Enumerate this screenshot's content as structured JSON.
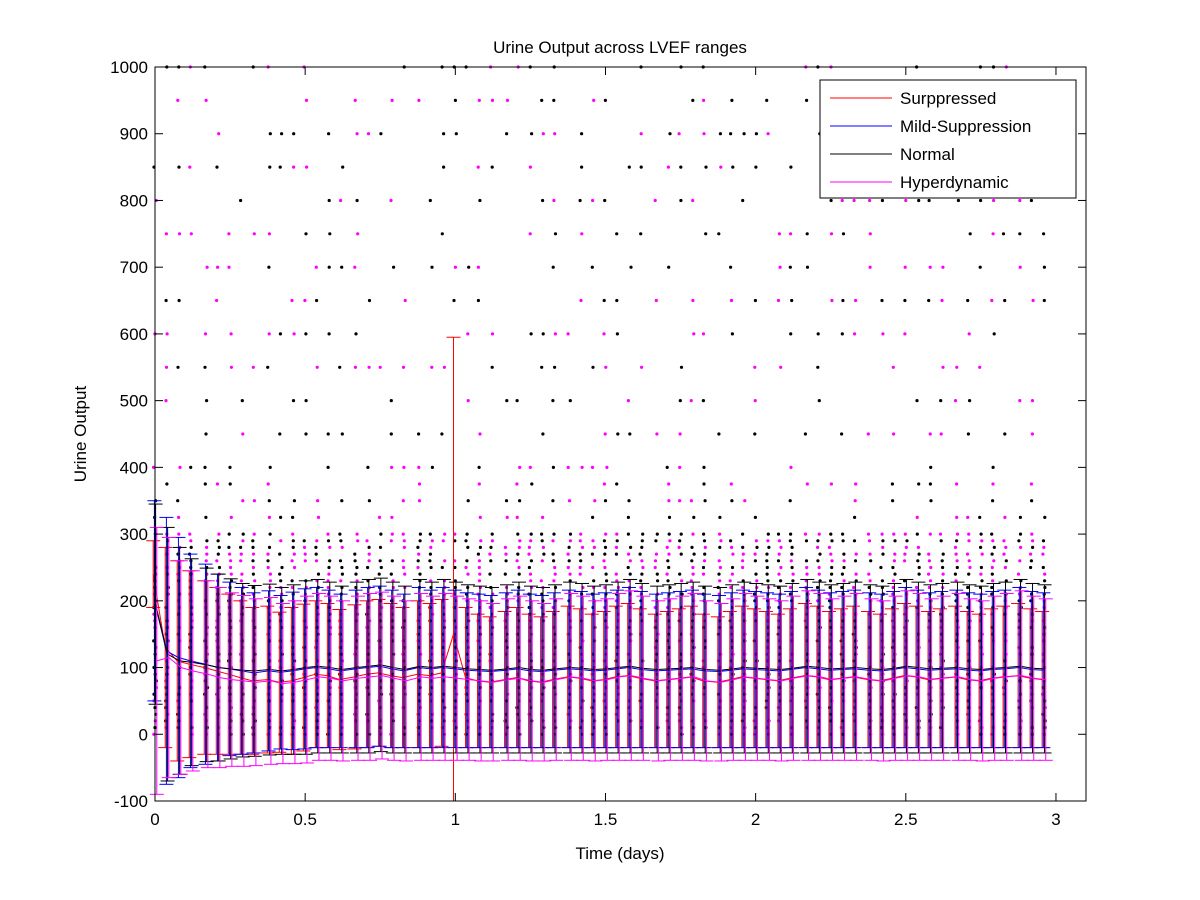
{
  "chart_data": {
    "type": "line",
    "title": "Urine Output across LVEF ranges",
    "xlabel": "Time (days)",
    "ylabel": "Urine Output",
    "xlim": [
      0,
      3.1
    ],
    "ylim": [
      -100,
      1000
    ],
    "x_ticks": [
      0,
      0.5,
      1,
      1.5,
      2,
      2.5,
      3
    ],
    "x_tick_labels": [
      "0",
      "0.5",
      "1",
      "1.5",
      "2",
      "2.5",
      "3"
    ],
    "y_ticks": [
      -100,
      0,
      100,
      200,
      300,
      400,
      500,
      600,
      700,
      800,
      900,
      1000
    ],
    "y_tick_labels": [
      "-100",
      "0",
      "100",
      "200",
      "300",
      "400",
      "500",
      "600",
      "700",
      "800",
      "900",
      "1000"
    ],
    "grid": false,
    "legend_position": "top-right",
    "x": [
      0,
      0.04,
      0.08,
      0.12,
      0.17,
      0.21,
      0.25,
      0.29,
      0.33,
      0.38,
      0.42,
      0.46,
      0.5,
      0.54,
      0.58,
      0.62,
      0.67,
      0.71,
      0.75,
      0.79,
      0.83,
      0.88,
      0.92,
      0.96,
      1.0,
      1.04,
      1.08,
      1.12,
      1.17,
      1.21,
      1.25,
      1.29,
      1.33,
      1.38,
      1.42,
      1.46,
      1.5,
      1.54,
      1.58,
      1.62,
      1.67,
      1.71,
      1.75,
      1.79,
      1.83,
      1.88,
      1.92,
      1.96,
      2.0,
      2.04,
      2.08,
      2.12,
      2.17,
      2.21,
      2.25,
      2.29,
      2.33,
      2.38,
      2.42,
      2.46,
      2.5,
      2.54,
      2.58,
      2.62,
      2.67,
      2.71,
      2.75,
      2.79,
      2.83,
      2.88,
      2.92,
      2.96
    ],
    "series": [
      {
        "name": "Surppressed",
        "color": "#ff0000",
        "values": [
          240,
          130,
          110,
          105,
          100,
          95,
          90,
          85,
          80,
          82,
          78,
          80,
          85,
          90,
          88,
          82,
          86,
          90,
          92,
          88,
          85,
          90,
          88,
          92,
          150,
          85,
          80,
          78,
          82,
          85,
          80,
          78,
          82,
          86,
          84,
          80,
          82,
          86,
          88,
          84,
          80,
          82,
          84,
          86,
          80,
          78,
          82,
          86,
          84,
          82,
          80,
          84,
          88,
          86,
          82,
          84,
          86,
          82,
          80,
          84,
          88,
          86,
          82,
          84,
          86,
          82,
          80,
          84,
          86,
          88,
          84,
          82
        ],
        "error": [
          50,
          150,
          150,
          140,
          130,
          125,
          120,
          115,
          110,
          110,
          105,
          110,
          110,
          110,
          108,
          105,
          108,
          110,
          110,
          108,
          105,
          110,
          108,
          110,
          445,
          105,
          100,
          98,
          102,
          105,
          100,
          98,
          102,
          106,
          104,
          100,
          102,
          106,
          108,
          104,
          100,
          102,
          104,
          106,
          100,
          98,
          102,
          106,
          104,
          102,
          100,
          104,
          108,
          106,
          102,
          104,
          106,
          102,
          100,
          104,
          108,
          106,
          102,
          104,
          106,
          102,
          100,
          104,
          106,
          108,
          104,
          102
        ]
      },
      {
        "name": "Mild-Suppression",
        "color": "#0000ff",
        "values": [
          200,
          125,
          115,
          110,
          105,
          100,
          98,
          95,
          92,
          95,
          93,
          95,
          98,
          100,
          98,
          95,
          98,
          100,
          102,
          98,
          95,
          100,
          98,
          100,
          98,
          96,
          95,
          94,
          96,
          98,
          95,
          94,
          96,
          98,
          97,
          95,
          96,
          98,
          100,
          97,
          95,
          96,
          97,
          98,
          95,
          94,
          96,
          98,
          97,
          96,
          95,
          97,
          100,
          98,
          96,
          97,
          98,
          96,
          95,
          97,
          100,
          98,
          96,
          97,
          98,
          96,
          95,
          97,
          98,
          100,
          97,
          96
        ],
        "error": [
          150,
          200,
          180,
          160,
          150,
          140,
          130,
          125,
          120,
          120,
          115,
          118,
          120,
          120,
          118,
          115,
          118,
          120,
          120,
          118,
          115,
          120,
          118,
          120,
          118,
          116,
          115,
          114,
          116,
          118,
          115,
          114,
          116,
          118,
          117,
          115,
          116,
          118,
          120,
          117,
          115,
          116,
          117,
          118,
          115,
          114,
          116,
          118,
          117,
          116,
          115,
          117,
          120,
          118,
          116,
          117,
          118,
          116,
          115,
          117,
          120,
          118,
          116,
          117,
          118,
          116,
          115,
          117,
          118,
          120,
          117,
          116
        ]
      },
      {
        "name": "Normal",
        "color": "#000000",
        "values": [
          195,
          120,
          110,
          108,
          104,
          100,
          98,
          96,
          95,
          97,
          95,
          97,
          100,
          102,
          100,
          97,
          100,
          102,
          104,
          100,
          97,
          102,
          100,
          102,
          100,
          98,
          97,
          96,
          98,
          100,
          97,
          96,
          98,
          100,
          99,
          97,
          98,
          100,
          102,
          99,
          97,
          98,
          99,
          100,
          97,
          96,
          98,
          100,
          99,
          98,
          97,
          99,
          102,
          100,
          98,
          99,
          100,
          98,
          97,
          99,
          102,
          100,
          98,
          99,
          100,
          98,
          97,
          99,
          100,
          102,
          99,
          98
        ],
        "error": [
          150,
          190,
          170,
          155,
          145,
          140,
          135,
          130,
          128,
          128,
          125,
          127,
          130,
          130,
          128,
          125,
          128,
          130,
          130,
          128,
          125,
          130,
          128,
          130,
          128,
          126,
          125,
          124,
          126,
          128,
          125,
          124,
          126,
          128,
          127,
          125,
          126,
          128,
          130,
          127,
          125,
          126,
          127,
          128,
          125,
          124,
          126,
          128,
          127,
          126,
          125,
          127,
          130,
          128,
          126,
          127,
          128,
          126,
          125,
          127,
          130,
          128,
          126,
          127,
          128,
          126,
          125,
          127,
          128,
          130,
          127,
          126
        ]
      },
      {
        "name": "Hyperdynamic",
        "color": "#ff00ff",
        "values": [
          110,
          115,
          100,
          95,
          90,
          85,
          82,
          80,
          78,
          80,
          76,
          78,
          82,
          86,
          84,
          80,
          84,
          86,
          88,
          84,
          80,
          86,
          84,
          86,
          84,
          82,
          80,
          78,
          82,
          84,
          80,
          78,
          82,
          86,
          84,
          80,
          82,
          86,
          88,
          84,
          80,
          82,
          84,
          86,
          80,
          78,
          82,
          86,
          84,
          82,
          80,
          84,
          88,
          86,
          82,
          84,
          86,
          82,
          80,
          84,
          88,
          86,
          82,
          84,
          86,
          82,
          80,
          84,
          86,
          88,
          84,
          82
        ],
        "error": [
          200,
          180,
          160,
          150,
          140,
          135,
          130,
          128,
          125,
          125,
          120,
          122,
          125,
          125,
          123,
          120,
          123,
          125,
          125,
          123,
          120,
          125,
          123,
          125,
          123,
          121,
          120,
          118,
          121,
          123,
          120,
          118,
          121,
          125,
          123,
          120,
          121,
          125,
          127,
          123,
          120,
          121,
          123,
          125,
          120,
          118,
          121,
          125,
          123,
          121,
          120,
          123,
          127,
          125,
          121,
          123,
          125,
          121,
          120,
          123,
          127,
          125,
          121,
          123,
          125,
          121,
          120,
          123,
          125,
          127,
          123,
          121
        ]
      }
    ],
    "scatter_points": {
      "note_colors": [
        "#000000",
        "#ff00ff"
      ],
      "values_per_time": [
        0,
        25,
        50,
        75,
        100,
        120,
        150,
        175,
        200,
        225,
        250,
        275,
        300,
        325,
        350,
        375,
        400,
        450,
        500,
        550,
        600,
        650,
        700,
        750,
        800,
        850,
        900,
        950,
        1000
      ]
    }
  }
}
